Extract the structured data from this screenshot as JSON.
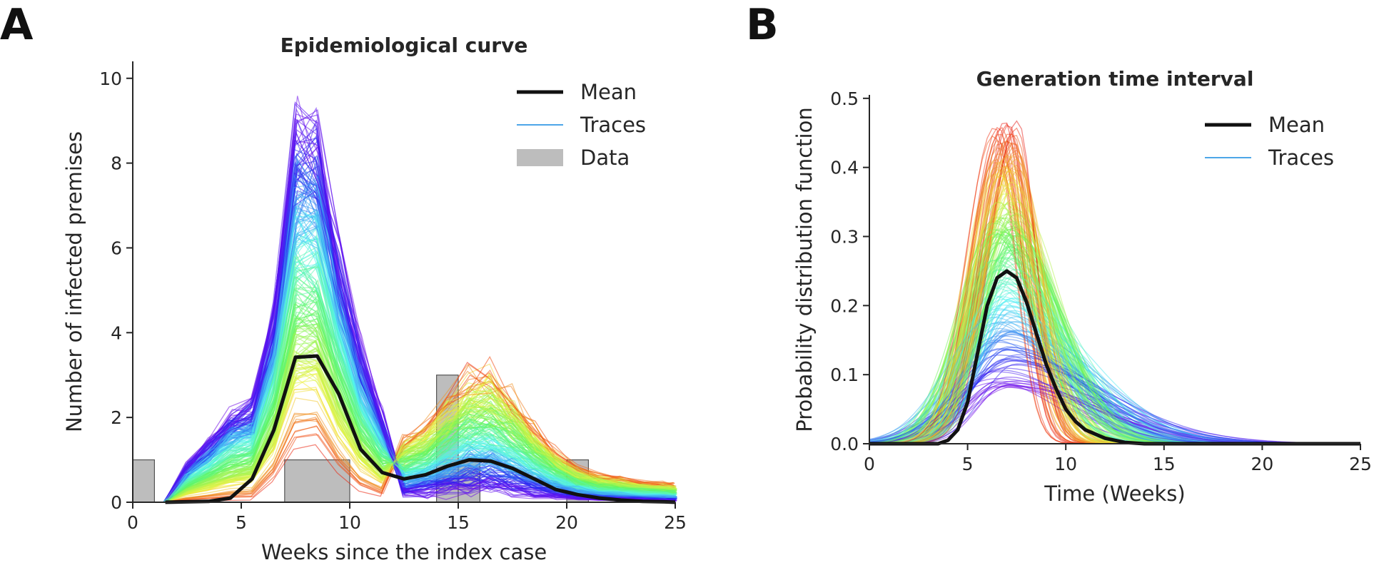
{
  "panel_letters": [
    "A",
    "B"
  ],
  "chart_data": [
    {
      "type": "line",
      "panel": "A",
      "title": "Epidemiological curve",
      "xlabel": "Weeks since the index case",
      "ylabel": "Number of infected premises",
      "xlim": [
        0,
        25
      ],
      "ylim": [
        0,
        10.4
      ],
      "xticks": [
        0,
        5,
        10,
        15,
        20,
        25
      ],
      "yticks": [
        0,
        2,
        4,
        6,
        8,
        10
      ],
      "grid": false,
      "legend_position": "top-right",
      "legend": [
        "Mean",
        "Traces",
        "Data"
      ],
      "series": [
        {
          "name": "Mean",
          "color": "#111111",
          "x": [
            1.5,
            3.5,
            4.5,
            5.5,
            6.5,
            7.5,
            8.5,
            9.5,
            10.5,
            11.5,
            12.5,
            13.5,
            14.5,
            15.5,
            16.5,
            17.5,
            18.5,
            19.5,
            20.5,
            21.5,
            22.5,
            23.5,
            24.5,
            25
          ],
          "y": [
            0.0,
            0.02,
            0.1,
            0.55,
            1.7,
            3.42,
            3.45,
            2.55,
            1.25,
            0.7,
            0.55,
            0.65,
            0.85,
            1.0,
            0.97,
            0.8,
            0.55,
            0.3,
            0.18,
            0.1,
            0.05,
            0.02,
            0.01,
            0.0
          ]
        }
      ],
      "bars": {
        "name": "Data",
        "color": "#bdbdbd",
        "bins": [
          {
            "x0": 0,
            "x1": 1,
            "value": 1
          },
          {
            "x0": 7,
            "x1": 10,
            "value": 1
          },
          {
            "x0": 14,
            "x1": 15,
            "value": 3
          },
          {
            "x0": 15,
            "x1": 16,
            "value": 1
          },
          {
            "x0": 20,
            "x1": 21,
            "value": 1
          }
        ]
      },
      "traces": {
        "name": "Traces",
        "colormap": "rainbow",
        "x": [
          1.5,
          2.5,
          3.5,
          4.5,
          5.5,
          6.5,
          7.5,
          8.5,
          9.5,
          10.5,
          11.5,
          12.5,
          13.5,
          14.5,
          15.5,
          16.5,
          17.5,
          18.5,
          19.5,
          20.5,
          21.5,
          22.5,
          23.5,
          24.5,
          25
        ],
        "envelope_upper": [
          0.0,
          1.0,
          1.6,
          2.3,
          2.6,
          5.0,
          9.9,
          9.7,
          6.5,
          4.0,
          2.3,
          1.8,
          2.2,
          3.0,
          3.7,
          3.8,
          3.0,
          2.2,
          1.5,
          1.0,
          0.8,
          0.7,
          0.6,
          0.55,
          0.5
        ],
        "envelope_lower": [
          0.0,
          0.0,
          0.0,
          0.0,
          0.0,
          0.4,
          1.1,
          1.2,
          0.6,
          0.2,
          0.1,
          0.05,
          0.05,
          0.05,
          0.05,
          0.05,
          0.05,
          0.05,
          0.03,
          0.02,
          0.01,
          0.0,
          0.0,
          0.0,
          0.0
        ]
      }
    },
    {
      "type": "line",
      "panel": "B",
      "title": "Generation time interval",
      "xlabel": "Time (Weeks)",
      "ylabel": "Probability distribution function",
      "xlim": [
        0,
        25
      ],
      "ylim": [
        0,
        0.505
      ],
      "xticks": [
        0,
        5,
        10,
        15,
        20,
        25
      ],
      "yticks": [
        0.0,
        0.1,
        0.2,
        0.3,
        0.4,
        0.5
      ],
      "grid": false,
      "legend_position": "top-right",
      "legend": [
        "Mean",
        "Traces"
      ],
      "series": [
        {
          "name": "Mean",
          "color": "#111111",
          "x": [
            0,
            2,
            3,
            3.5,
            4,
            4.5,
            5,
            5.5,
            6,
            6.5,
            7,
            7.5,
            8,
            8.5,
            9,
            9.5,
            10,
            10.5,
            11,
            12,
            13,
            14,
            25
          ],
          "y": [
            0.0,
            0.0,
            0.0,
            0.0,
            0.005,
            0.02,
            0.06,
            0.13,
            0.2,
            0.24,
            0.25,
            0.24,
            0.205,
            0.16,
            0.115,
            0.08,
            0.05,
            0.032,
            0.02,
            0.008,
            0.002,
            0.0,
            0.0
          ]
        }
      ],
      "traces": {
        "name": "Traces",
        "colormap": "rainbow",
        "peak_range": [
          0.08,
          0.47
        ],
        "peak_week_range": [
          6.3,
          7.6
        ]
      }
    }
  ]
}
